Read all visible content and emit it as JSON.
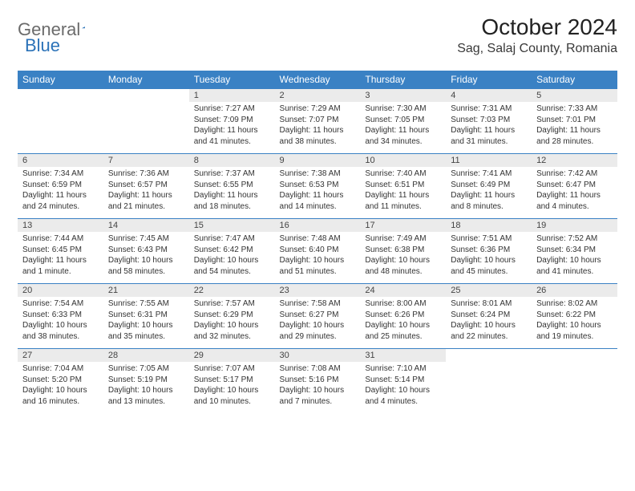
{
  "logo": {
    "word1": "General",
    "word2": "Blue"
  },
  "title": {
    "month": "October 2024",
    "location": "Sag, Salaj County, Romania"
  },
  "colors": {
    "header_bg": "#3a81c4",
    "header_text": "#ffffff",
    "daynum_bg": "#ebebeb",
    "border": "#3a81c4",
    "logo_gray": "#6b6b6b",
    "logo_blue": "#2b72b8"
  },
  "day_headers": [
    "Sunday",
    "Monday",
    "Tuesday",
    "Wednesday",
    "Thursday",
    "Friday",
    "Saturday"
  ],
  "weeks": [
    [
      {
        "n": "",
        "sr": "",
        "ss": "",
        "dl": ""
      },
      {
        "n": "",
        "sr": "",
        "ss": "",
        "dl": ""
      },
      {
        "n": "1",
        "sr": "7:27 AM",
        "ss": "7:09 PM",
        "dl": "11 hours and 41 minutes."
      },
      {
        "n": "2",
        "sr": "7:29 AM",
        "ss": "7:07 PM",
        "dl": "11 hours and 38 minutes."
      },
      {
        "n": "3",
        "sr": "7:30 AM",
        "ss": "7:05 PM",
        "dl": "11 hours and 34 minutes."
      },
      {
        "n": "4",
        "sr": "7:31 AM",
        "ss": "7:03 PM",
        "dl": "11 hours and 31 minutes."
      },
      {
        "n": "5",
        "sr": "7:33 AM",
        "ss": "7:01 PM",
        "dl": "11 hours and 28 minutes."
      }
    ],
    [
      {
        "n": "6",
        "sr": "7:34 AM",
        "ss": "6:59 PM",
        "dl": "11 hours and 24 minutes."
      },
      {
        "n": "7",
        "sr": "7:36 AM",
        "ss": "6:57 PM",
        "dl": "11 hours and 21 minutes."
      },
      {
        "n": "8",
        "sr": "7:37 AM",
        "ss": "6:55 PM",
        "dl": "11 hours and 18 minutes."
      },
      {
        "n": "9",
        "sr": "7:38 AM",
        "ss": "6:53 PM",
        "dl": "11 hours and 14 minutes."
      },
      {
        "n": "10",
        "sr": "7:40 AM",
        "ss": "6:51 PM",
        "dl": "11 hours and 11 minutes."
      },
      {
        "n": "11",
        "sr": "7:41 AM",
        "ss": "6:49 PM",
        "dl": "11 hours and 8 minutes."
      },
      {
        "n": "12",
        "sr": "7:42 AM",
        "ss": "6:47 PM",
        "dl": "11 hours and 4 minutes."
      }
    ],
    [
      {
        "n": "13",
        "sr": "7:44 AM",
        "ss": "6:45 PM",
        "dl": "11 hours and 1 minute."
      },
      {
        "n": "14",
        "sr": "7:45 AM",
        "ss": "6:43 PM",
        "dl": "10 hours and 58 minutes."
      },
      {
        "n": "15",
        "sr": "7:47 AM",
        "ss": "6:42 PM",
        "dl": "10 hours and 54 minutes."
      },
      {
        "n": "16",
        "sr": "7:48 AM",
        "ss": "6:40 PM",
        "dl": "10 hours and 51 minutes."
      },
      {
        "n": "17",
        "sr": "7:49 AM",
        "ss": "6:38 PM",
        "dl": "10 hours and 48 minutes."
      },
      {
        "n": "18",
        "sr": "7:51 AM",
        "ss": "6:36 PM",
        "dl": "10 hours and 45 minutes."
      },
      {
        "n": "19",
        "sr": "7:52 AM",
        "ss": "6:34 PM",
        "dl": "10 hours and 41 minutes."
      }
    ],
    [
      {
        "n": "20",
        "sr": "7:54 AM",
        "ss": "6:33 PM",
        "dl": "10 hours and 38 minutes."
      },
      {
        "n": "21",
        "sr": "7:55 AM",
        "ss": "6:31 PM",
        "dl": "10 hours and 35 minutes."
      },
      {
        "n": "22",
        "sr": "7:57 AM",
        "ss": "6:29 PM",
        "dl": "10 hours and 32 minutes."
      },
      {
        "n": "23",
        "sr": "7:58 AM",
        "ss": "6:27 PM",
        "dl": "10 hours and 29 minutes."
      },
      {
        "n": "24",
        "sr": "8:00 AM",
        "ss": "6:26 PM",
        "dl": "10 hours and 25 minutes."
      },
      {
        "n": "25",
        "sr": "8:01 AM",
        "ss": "6:24 PM",
        "dl": "10 hours and 22 minutes."
      },
      {
        "n": "26",
        "sr": "8:02 AM",
        "ss": "6:22 PM",
        "dl": "10 hours and 19 minutes."
      }
    ],
    [
      {
        "n": "27",
        "sr": "7:04 AM",
        "ss": "5:20 PM",
        "dl": "10 hours and 16 minutes."
      },
      {
        "n": "28",
        "sr": "7:05 AM",
        "ss": "5:19 PM",
        "dl": "10 hours and 13 minutes."
      },
      {
        "n": "29",
        "sr": "7:07 AM",
        "ss": "5:17 PM",
        "dl": "10 hours and 10 minutes."
      },
      {
        "n": "30",
        "sr": "7:08 AM",
        "ss": "5:16 PM",
        "dl": "10 hours and 7 minutes."
      },
      {
        "n": "31",
        "sr": "7:10 AM",
        "ss": "5:14 PM",
        "dl": "10 hours and 4 minutes."
      },
      {
        "n": "",
        "sr": "",
        "ss": "",
        "dl": ""
      },
      {
        "n": "",
        "sr": "",
        "ss": "",
        "dl": ""
      }
    ]
  ],
  "labels": {
    "sunrise": "Sunrise:",
    "sunset": "Sunset:",
    "daylight": "Daylight:"
  }
}
